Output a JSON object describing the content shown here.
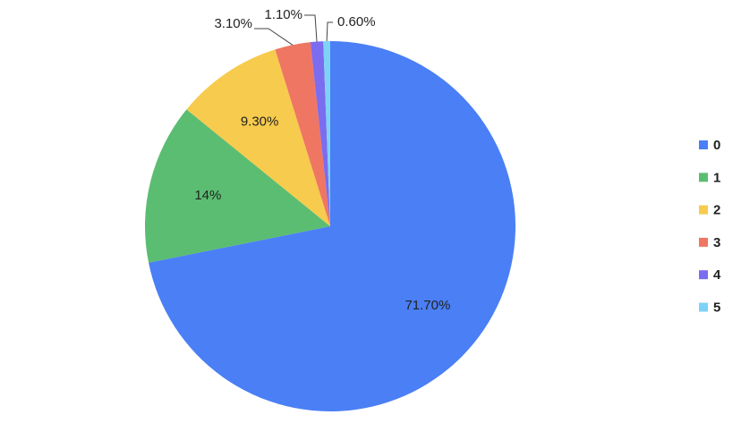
{
  "chart_data": {
    "type": "pie",
    "categories": [
      "0",
      "1",
      "2",
      "3",
      "4",
      "5"
    ],
    "values": [
      71.7,
      14,
      9.3,
      3.1,
      1.1,
      0.6
    ],
    "value_labels": [
      "71.70%",
      "14%",
      "9.30%",
      "3.10%",
      "1.10%",
      "0.60%"
    ],
    "colors": [
      "#4a7ff5",
      "#5bbd72",
      "#f7cb4d",
      "#ef7662",
      "#7b6cf0",
      "#7dd3f7"
    ],
    "legend": "right"
  }
}
